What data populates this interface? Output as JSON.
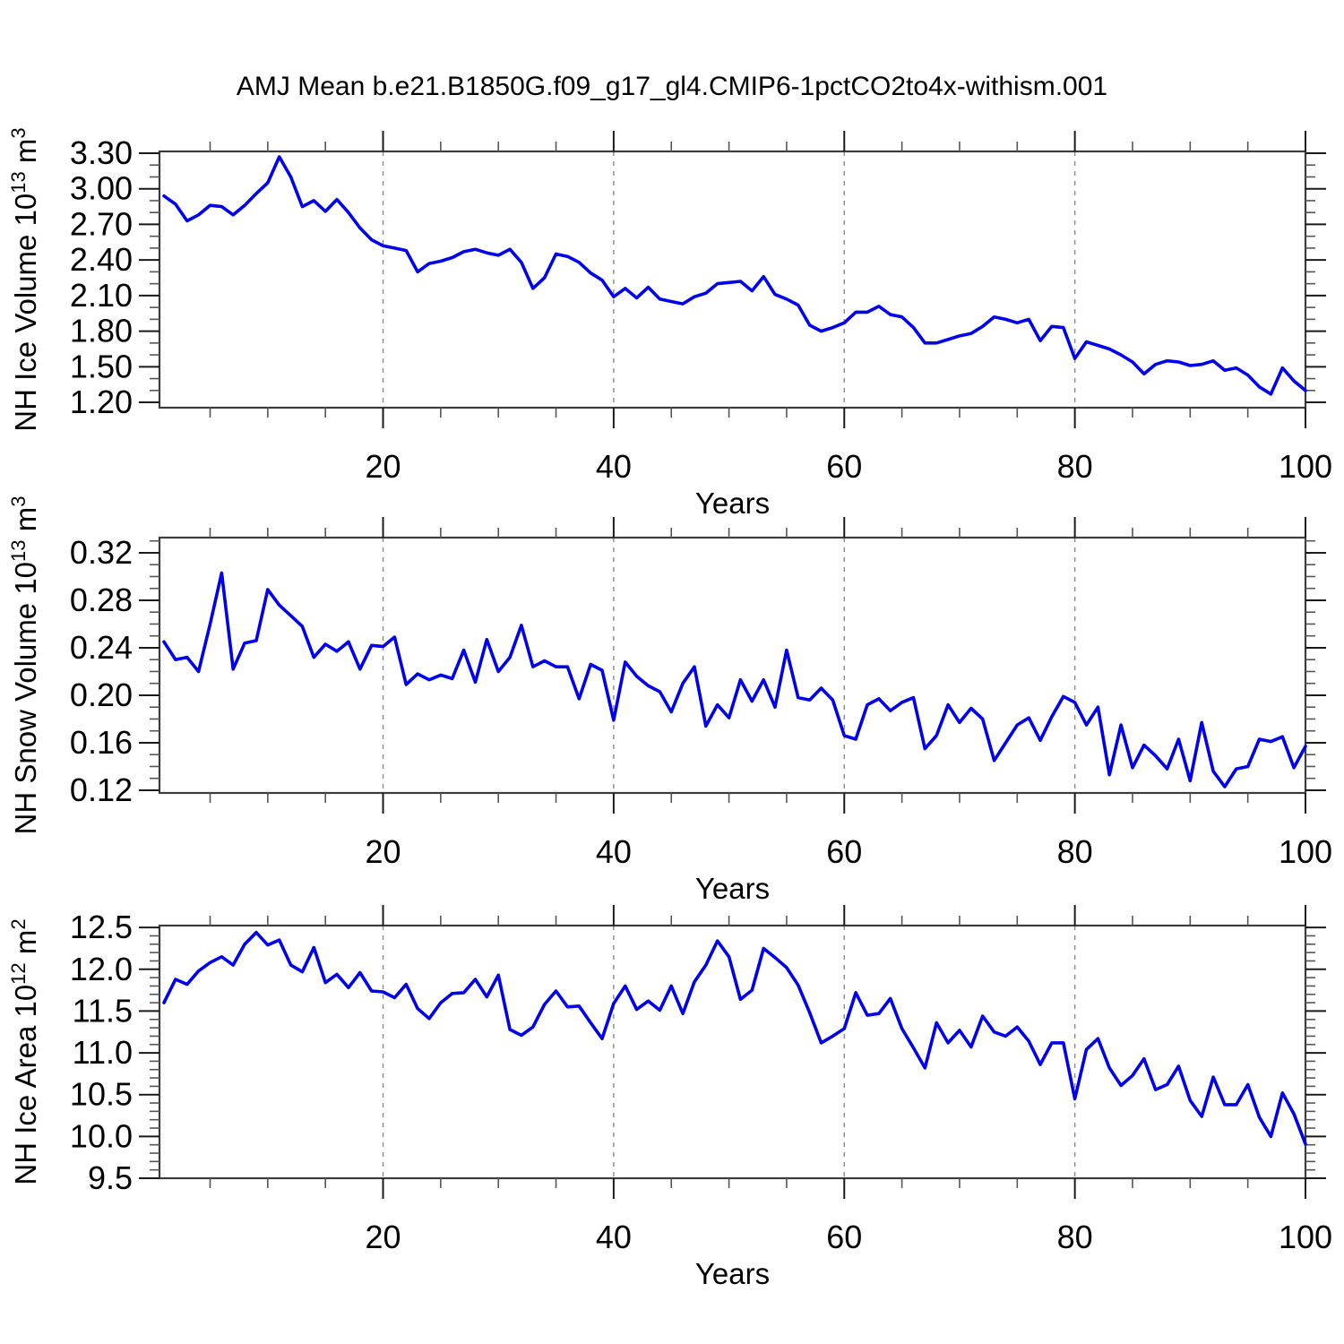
{
  "title": "AMJ Mean b.e21.B1850G.f09_g17_gl4.CMIP6-1pctCO2to4x-withism.001",
  "accent_color": "#0000ee",
  "chart_data": [
    {
      "type": "line",
      "ylabel": "NH Ice Volume 10^13 m^3",
      "ylabel_segments": [
        [
          "NH Ice Volume 10",
          "t"
        ],
        [
          "13",
          "s"
        ],
        [
          " m",
          "t"
        ],
        [
          "3",
          "s"
        ]
      ],
      "xlabel": "Years",
      "xticks": [
        20,
        40,
        60,
        80,
        100
      ],
      "x_minor_step": 5,
      "xlim": [
        0.61,
        100
      ],
      "ytick_labels": [
        "3.30",
        "3.00",
        "2.70",
        "2.40",
        "2.10",
        "1.80",
        "1.50",
        "1.20"
      ],
      "yticks": [
        3.3,
        3.0,
        2.7,
        2.4,
        2.1,
        1.8,
        1.5,
        1.2
      ],
      "y_minor_step": 0.1,
      "ylim": [
        1.155,
        3.315
      ],
      "grid_x": [
        20,
        40,
        60,
        80
      ],
      "x": "years 1..100",
      "values": [
        2.94,
        2.87,
        2.73,
        2.78,
        2.86,
        2.85,
        2.78,
        2.86,
        2.96,
        3.05,
        3.27,
        3.1,
        2.85,
        2.9,
        2.81,
        2.91,
        2.8,
        2.67,
        2.57,
        2.52,
        2.5,
        2.48,
        2.3,
        2.37,
        2.39,
        2.42,
        2.47,
        2.49,
        2.46,
        2.44,
        2.49,
        2.38,
        2.16,
        2.25,
        2.45,
        2.43,
        2.38,
        2.29,
        2.23,
        2.09,
        2.16,
        2.08,
        2.17,
        2.07,
        2.05,
        2.03,
        2.09,
        2.12,
        2.2,
        2.21,
        2.22,
        2.14,
        2.26,
        2.11,
        2.07,
        2.02,
        1.85,
        1.8,
        1.83,
        1.87,
        1.96,
        1.96,
        2.01,
        1.94,
        1.92,
        1.83,
        1.7,
        1.7,
        1.73,
        1.76,
        1.78,
        1.84,
        1.92,
        1.9,
        1.87,
        1.9,
        1.72,
        1.84,
        1.83,
        1.57,
        1.71,
        1.68,
        1.65,
        1.6,
        1.54,
        1.44,
        1.52,
        1.55,
        1.54,
        1.51,
        1.52,
        1.55,
        1.47,
        1.49,
        1.43,
        1.33,
        1.27,
        1.49,
        1.38,
        1.3
      ]
    },
    {
      "type": "line",
      "ylabel": "NH Snow Volume 10^13 m^3",
      "ylabel_segments": [
        [
          "NH Snow Volume 10",
          "t"
        ],
        [
          "13",
          "s"
        ],
        [
          " m",
          "t"
        ],
        [
          "3",
          "s"
        ]
      ],
      "xlabel": "Years",
      "xticks": [
        20,
        40,
        60,
        80,
        100
      ],
      "x_minor_step": 5,
      "xlim": [
        0.61,
        100
      ],
      "ytick_labels": [
        "0.32",
        "0.28",
        "0.24",
        "0.20",
        "0.16",
        "0.12"
      ],
      "yticks": [
        0.32,
        0.28,
        0.24,
        0.2,
        0.16,
        0.12
      ],
      "y_minor_step": 0.01,
      "ylim": [
        0.1177,
        0.3328
      ],
      "grid_x": [
        20,
        40,
        60,
        80
      ],
      "x": "years 1..100",
      "values": [
        0.245,
        0.23,
        0.232,
        0.22,
        0.26,
        0.303,
        0.222,
        0.244,
        0.246,
        0.289,
        0.276,
        0.267,
        0.258,
        0.232,
        0.243,
        0.237,
        0.245,
        0.222,
        0.242,
        0.241,
        0.249,
        0.209,
        0.218,
        0.213,
        0.217,
        0.214,
        0.238,
        0.211,
        0.247,
        0.22,
        0.232,
        0.259,
        0.224,
        0.229,
        0.224,
        0.224,
        0.197,
        0.226,
        0.221,
        0.179,
        0.228,
        0.216,
        0.208,
        0.203,
        0.186,
        0.21,
        0.224,
        0.174,
        0.192,
        0.181,
        0.213,
        0.195,
        0.213,
        0.19,
        0.238,
        0.198,
        0.196,
        0.206,
        0.196,
        0.166,
        0.163,
        0.192,
        0.197,
        0.187,
        0.194,
        0.198,
        0.155,
        0.166,
        0.192,
        0.177,
        0.189,
        0.18,
        0.145,
        0.16,
        0.175,
        0.181,
        0.162,
        0.182,
        0.199,
        0.194,
        0.175,
        0.19,
        0.133,
        0.175,
        0.139,
        0.158,
        0.149,
        0.138,
        0.163,
        0.128,
        0.177,
        0.136,
        0.123,
        0.138,
        0.14,
        0.163,
        0.161,
        0.165,
        0.139,
        0.157
      ]
    },
    {
      "type": "line",
      "ylabel": "NH Ice Area 10^12 m^2",
      "ylabel_segments": [
        [
          "NH Ice Area 10",
          "t"
        ],
        [
          "12",
          "s"
        ],
        [
          " m",
          "t"
        ],
        [
          "2",
          "s"
        ]
      ],
      "xlabel": "Years",
      "xticks": [
        20,
        40,
        60,
        80,
        100
      ],
      "x_minor_step": 5,
      "xlim": [
        0.61,
        100
      ],
      "ytick_labels": [
        "12.5",
        "12.0",
        "11.5",
        "11.0",
        "10.5",
        "10.0",
        "9.5"
      ],
      "yticks": [
        12.5,
        12.0,
        11.5,
        11.0,
        10.5,
        10.0,
        9.5
      ],
      "y_minor_step": 0.1,
      "ylim": [
        9.5,
        12.523
      ],
      "grid_x": [
        20,
        40,
        60,
        80
      ],
      "x": "years 1..100",
      "values": [
        11.6,
        11.88,
        11.82,
        11.98,
        12.08,
        12.15,
        12.05,
        12.3,
        12.44,
        12.29,
        12.35,
        12.05,
        11.97,
        12.26,
        11.84,
        11.94,
        11.78,
        11.96,
        11.74,
        11.73,
        11.66,
        11.82,
        11.53,
        11.41,
        11.6,
        11.71,
        11.72,
        11.88,
        11.67,
        11.93,
        11.28,
        11.21,
        11.31,
        11.58,
        11.74,
        11.55,
        11.56,
        11.36,
        11.17,
        11.59,
        11.8,
        11.52,
        11.62,
        11.51,
        11.8,
        11.47,
        11.85,
        12.05,
        12.34,
        12.15,
        11.64,
        11.75,
        12.25,
        12.14,
        12.02,
        11.81,
        11.48,
        11.12,
        11.2,
        11.29,
        11.72,
        11.45,
        11.47,
        11.65,
        11.29,
        11.06,
        10.82,
        11.36,
        11.12,
        11.27,
        11.07,
        11.44,
        11.25,
        11.2,
        11.31,
        11.14,
        10.86,
        11.12,
        11.12,
        10.45,
        11.04,
        11.17,
        10.82,
        10.61,
        10.73,
        10.93,
        10.56,
        10.62,
        10.84,
        10.43,
        10.24,
        10.71,
        10.38,
        10.38,
        10.62,
        10.23,
        10.0,
        10.52,
        10.27,
        9.91
      ]
    }
  ]
}
